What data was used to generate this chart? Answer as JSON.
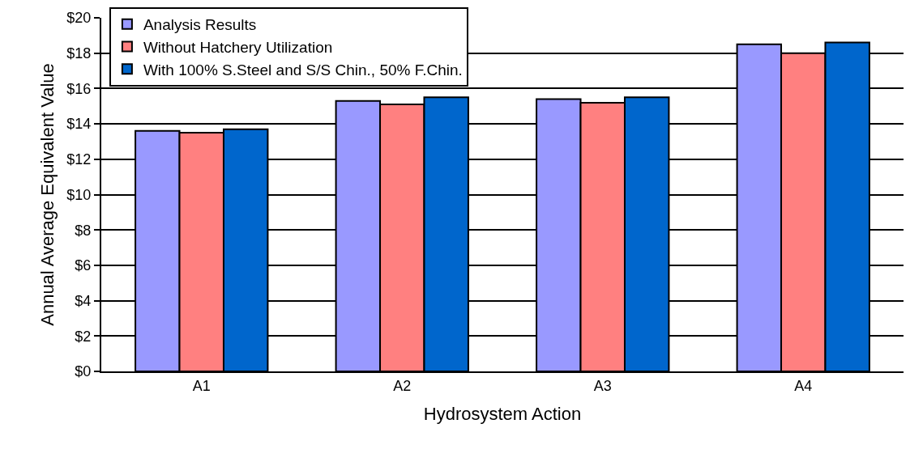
{
  "chart_data": {
    "type": "bar",
    "xlabel": "Hydrosystem Action",
    "ylabel": "Annual Average Equivalent Value",
    "categories": [
      "A1",
      "A2",
      "A3",
      "A4"
    ],
    "series": [
      {
        "name": "Analysis Results",
        "color": "#9999ff",
        "values": [
          13.6,
          15.3,
          15.4,
          18.5
        ]
      },
      {
        "name": "Without Hatchery Utilization",
        "color": "#ff8080",
        "values": [
          13.5,
          15.1,
          15.2,
          18.0
        ]
      },
      {
        "name": "With 100% S.Steel and S/S Chin., 50% F.Chin.",
        "color": "#0066cc",
        "values": [
          13.7,
          15.5,
          15.5,
          18.6
        ]
      }
    ],
    "ylim": [
      0,
      20
    ],
    "yticks": [
      {
        "value": 0,
        "label": "$0"
      },
      {
        "value": 2,
        "label": "$2"
      },
      {
        "value": 4,
        "label": "$4"
      },
      {
        "value": 6,
        "label": "$6"
      },
      {
        "value": 8,
        "label": "$8"
      },
      {
        "value": 10,
        "label": "$10"
      },
      {
        "value": 12,
        "label": "$12"
      },
      {
        "value": 14,
        "label": "$14"
      },
      {
        "value": 16,
        "label": "$16"
      },
      {
        "value": 18,
        "label": "$18"
      },
      {
        "value": 20,
        "label": "$20"
      }
    ],
    "grid": "y",
    "legend": "top left"
  }
}
